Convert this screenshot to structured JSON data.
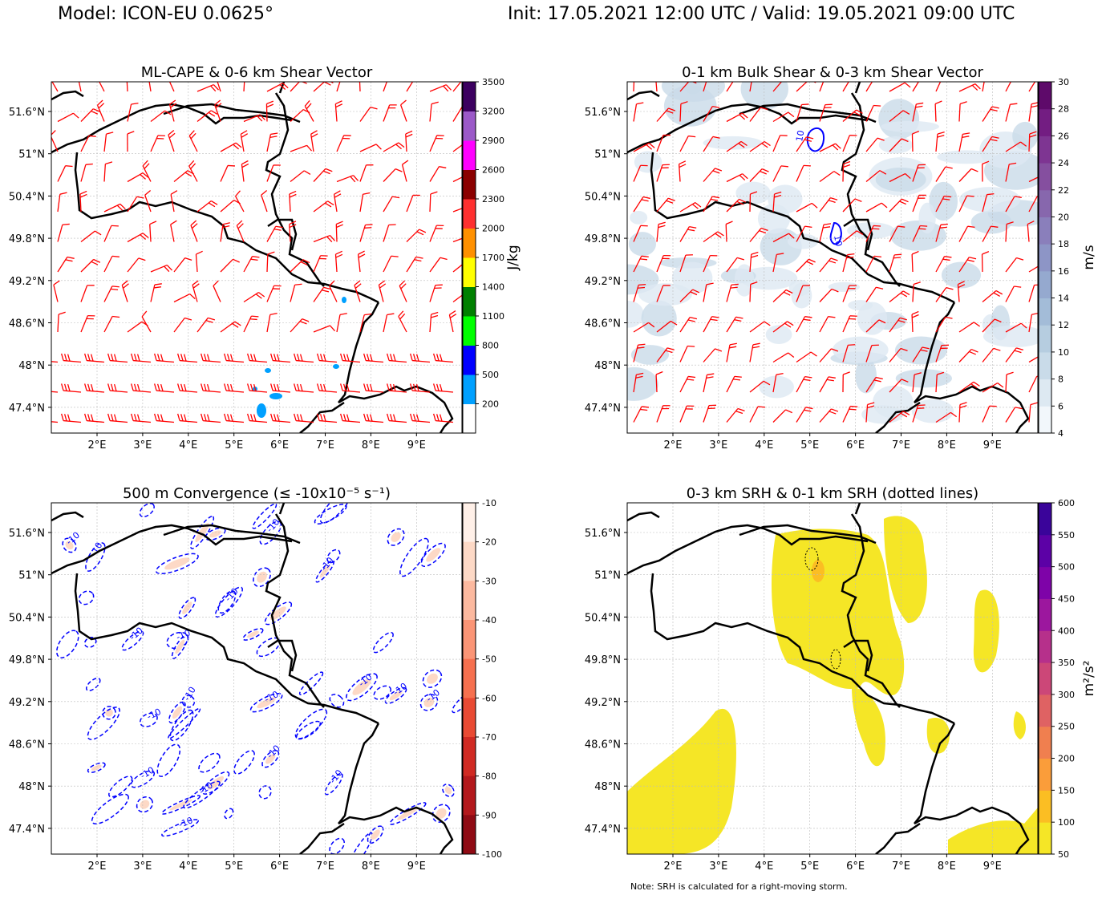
{
  "header": {
    "model": "Model: ICON-EU 0.0625°",
    "time": "Init: 17.05.2021 12:00 UTC / Valid: 19.05.2021 09:00 UTC"
  },
  "note": "Note: SRH is calculated for a right-moving storm.",
  "chart_data": [
    {
      "type": "heatmap",
      "title": "ML-CAPE & 0-6 km Shear Vector",
      "xticks": [
        "2°E",
        "3°E",
        "4°E",
        "5°E",
        "6°E",
        "7°E",
        "8°E",
        "9°E"
      ],
      "yticks": [
        "51.6°N",
        "51°N",
        "50.4°N",
        "49.8°N",
        "49.2°N",
        "48.6°N",
        "48°N",
        "47.4°N"
      ],
      "xlim": [
        1.0,
        10.0
      ],
      "ylim": [
        47.03,
        52.02
      ],
      "colorbar": {
        "label": "J/kg",
        "ticks": [
          "200",
          "500",
          "800",
          "1100",
          "1400",
          "1700",
          "2000",
          "2300",
          "2600",
          "2900",
          "3200",
          "3500"
        ],
        "colors": [
          "#ffffff",
          "#00a0ff",
          "#0000ff",
          "#00ff00",
          "#008000",
          "#ffff00",
          "#ff9000",
          "#ff3030",
          "#8b0000",
          "#ff00ff",
          "#9b59c8",
          "#3c0060"
        ]
      }
    },
    {
      "type": "heatmap",
      "title": "0-1 km Bulk Shear & 0-3 km Shear Vector",
      "xticks": [
        "2°E",
        "3°E",
        "4°E",
        "5°E",
        "6°E",
        "7°E",
        "8°E",
        "9°E"
      ],
      "yticks": [
        "51.6°N",
        "51°N",
        "50.4°N",
        "49.8°N",
        "49.2°N",
        "48.6°N",
        "48°N",
        "47.4°N"
      ],
      "xlim": [
        1.0,
        10.0
      ],
      "ylim": [
        47.03,
        52.02
      ],
      "contour_label": "10",
      "colorbar": {
        "label": "m/s",
        "ticks": [
          "4",
          "6",
          "8",
          "10",
          "12",
          "14",
          "16",
          "18",
          "20",
          "22",
          "24",
          "26",
          "28",
          "30"
        ],
        "colors": [
          "#f2f7fb",
          "#dde9f2",
          "#c9dbe9",
          "#b6cde0",
          "#a3bcd8",
          "#95a9cf",
          "#8d95c6",
          "#8a7fbb",
          "#8767ad",
          "#854f9f",
          "#7e3592",
          "#731d82",
          "#5e0a6a"
        ]
      }
    },
    {
      "type": "heatmap",
      "title": "500 m Convergence (≤ -10x10⁻⁵ s⁻¹)",
      "xticks": [
        "2°E",
        "3°E",
        "4°E",
        "5°E",
        "6°E",
        "7°E",
        "8°E",
        "9°E"
      ],
      "yticks": [
        "51.6°N",
        "51°N",
        "50.4°N",
        "49.8°N",
        "49.2°N",
        "48.6°N",
        "48°N",
        "47.4°N"
      ],
      "xlim": [
        1.0,
        10.0
      ],
      "ylim": [
        47.03,
        52.02
      ],
      "contour_label": "-10",
      "colorbar": {
        "ticks": [
          "-10",
          "-20",
          "-30",
          "-40",
          "-50",
          "-60",
          "-70",
          "-80",
          "-90",
          "-100"
        ],
        "colors": [
          "#fff0e8",
          "#fdd9c6",
          "#fcb99f",
          "#fb9576",
          "#f6704f",
          "#e94a33",
          "#d02a23",
          "#b3181c",
          "#8f0b14",
          "#67000d"
        ]
      }
    },
    {
      "type": "heatmap",
      "title": "0-3 km SRH & 0-1 km SRH (dotted lines)",
      "xticks": [
        "2°E",
        "3°E",
        "4°E",
        "5°E",
        "6°E",
        "7°E",
        "8°E",
        "9°E"
      ],
      "yticks": [
        "51.6°N",
        "51°N",
        "50.4°N",
        "49.8°N",
        "49.2°N",
        "48.6°N",
        "48°N",
        "47.4°N"
      ],
      "xlim": [
        1.0,
        10.0
      ],
      "ylim": [
        47.03,
        52.02
      ],
      "colorbar": {
        "label": "m²/s²",
        "ticks": [
          "50",
          "100",
          "150",
          "200",
          "250",
          "300",
          "350",
          "400",
          "450",
          "500",
          "550",
          "600"
        ],
        "colors": [
          "#f5e626",
          "#fbbe23",
          "#fa9d3a",
          "#f07f4f",
          "#df6263",
          "#cc4778",
          "#b6308b",
          "#9c179e",
          "#7e03a8",
          "#5c01a6",
          "#3a049a"
        ]
      }
    }
  ]
}
